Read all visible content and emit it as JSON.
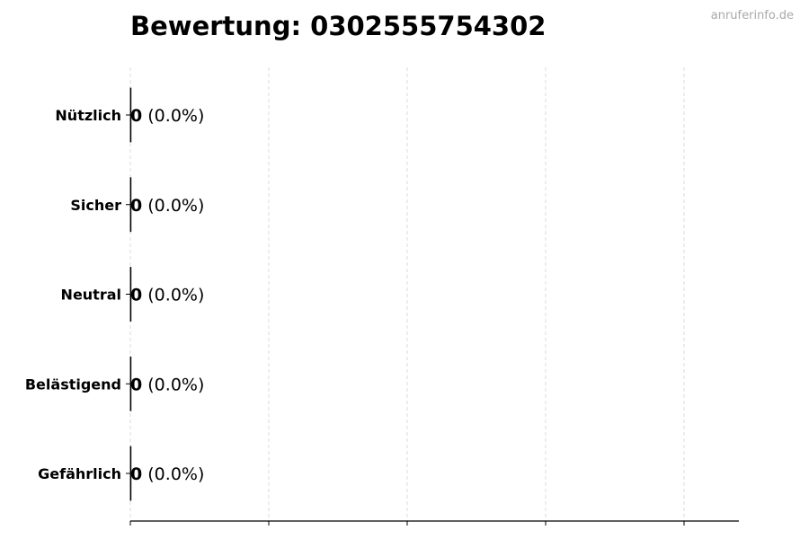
{
  "watermark": "anruferinfo.de",
  "chart_data": {
    "type": "bar",
    "orientation": "horizontal",
    "title": "Bewertung: 0302555754302",
    "categories": [
      "Nützlich",
      "Sicher",
      "Neutral",
      "Belästigend",
      "Gefährlich"
    ],
    "values": [
      0,
      0,
      0,
      0,
      0
    ],
    "value_labels": [
      "0",
      "0",
      "0",
      "0",
      "0"
    ],
    "percent_labels": [
      "(0.0%)",
      "(0.0%)",
      "(0.0%)",
      "(0.0%)",
      "(0.0%)"
    ],
    "xlabel": "",
    "ylabel": "",
    "x_tick_labels_shown": false,
    "grid": "vertical dashed",
    "grid_color": "#d3d3d3",
    "bar_edge_color": "#000000"
  }
}
